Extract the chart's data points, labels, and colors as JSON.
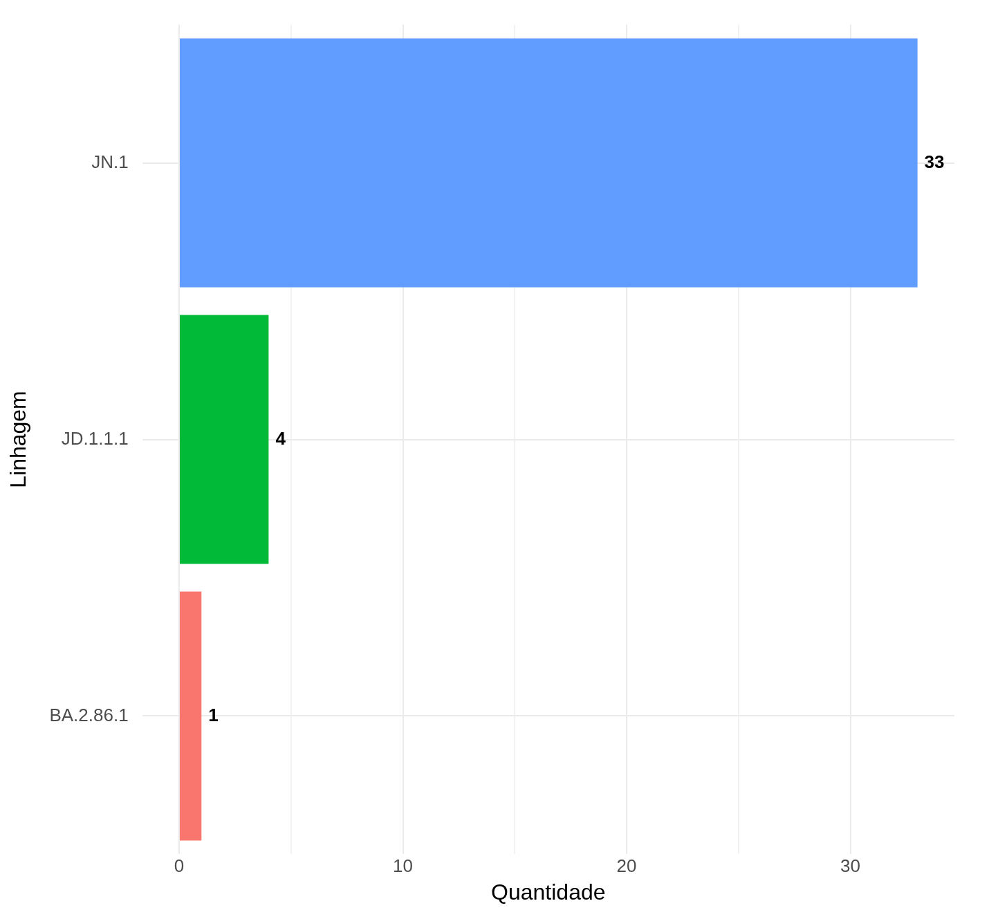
{
  "chart_data": {
    "type": "bar",
    "orientation": "horizontal",
    "xlabel": "Quantidade",
    "ylabel": "Linhagem",
    "categories": [
      "JN.1",
      "JD.1.1.1",
      "BA.2.86.1"
    ],
    "values": [
      33,
      4,
      1
    ],
    "colors": [
      "#619cff",
      "#00ba38",
      "#f8766d"
    ],
    "xlim": [
      -1.65,
      34.65
    ],
    "xticks": [
      0,
      {
        "value": 5,
        "label": null
      },
      10,
      {
        "value": 15,
        "label": null
      },
      20,
      {
        "value": 25,
        "label": null
      },
      30
    ],
    "grid": true,
    "data_labels": true
  }
}
